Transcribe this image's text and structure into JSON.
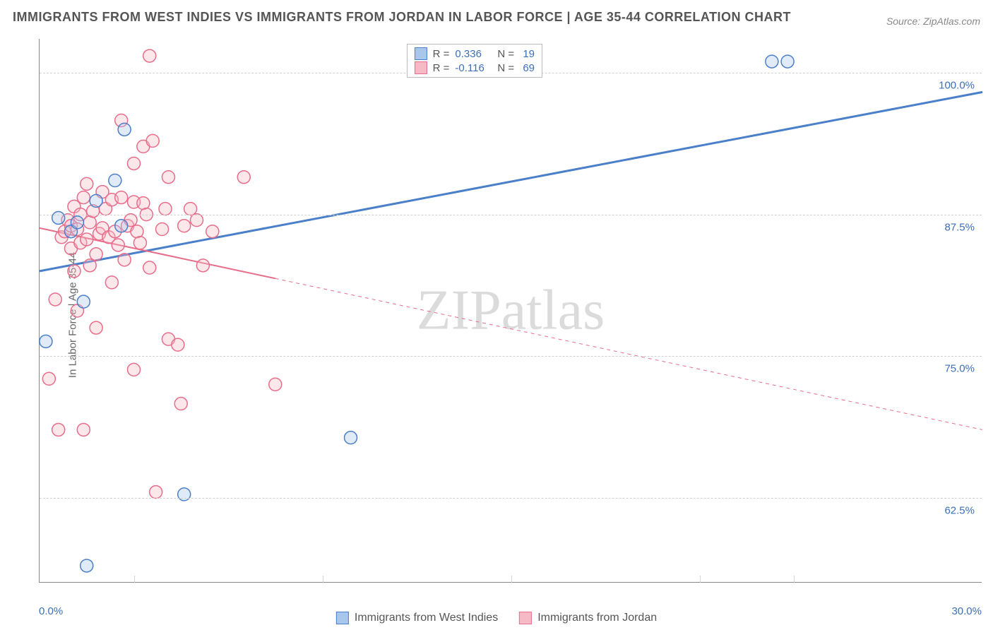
{
  "title": "IMMIGRANTS FROM WEST INDIES VS IMMIGRANTS FROM JORDAN IN LABOR FORCE | AGE 35-44 CORRELATION CHART",
  "source": "Source: ZipAtlas.com",
  "y_axis_label": "In Labor Force | Age 35-44",
  "watermark": "ZIPatlas",
  "chart": {
    "type": "scatter-with-regression",
    "background_color": "#ffffff",
    "grid_color": "#d0d0d0",
    "axis_color": "#888888",
    "label_color": "#3b6fb6",
    "title_color": "#555555",
    "xlim": [
      0.0,
      30.0
    ],
    "ylim": [
      55.0,
      103.0
    ],
    "x_ticks": [
      0.0,
      30.0
    ],
    "x_tick_labels": [
      "0.0%",
      "30.0%"
    ],
    "y_ticks": [
      62.5,
      75.0,
      87.5,
      100.0
    ],
    "y_tick_labels": [
      "62.5%",
      "75.0%",
      "87.5%",
      "100.0%"
    ],
    "x_minor_ticks": [
      3.0,
      9.0,
      15.0,
      21.0,
      24.0
    ],
    "marker_radius": 9,
    "marker_opacity": 0.35,
    "marker_stroke_width": 1.5,
    "series": [
      {
        "name": "Immigrants from West Indies",
        "color_fill": "#a9c7ec",
        "color_stroke": "#4a7fc9",
        "R": "0.336",
        "N": "19",
        "regression": {
          "x1": 0.0,
          "y1": 82.5,
          "x2": 30.0,
          "y2": 98.3,
          "line_width": 3
        },
        "points": [
          [
            0.2,
            76.3
          ],
          [
            0.6,
            87.2
          ],
          [
            1.0,
            86.0
          ],
          [
            1.2,
            86.8
          ],
          [
            1.4,
            79.8
          ],
          [
            1.8,
            88.7
          ],
          [
            2.4,
            90.5
          ],
          [
            2.6,
            86.5
          ],
          [
            2.7,
            95.0
          ],
          [
            4.6,
            62.8
          ],
          [
            9.9,
            67.8
          ],
          [
            23.3,
            101.0
          ],
          [
            23.8,
            101.0
          ],
          [
            1.5,
            56.5
          ]
        ]
      },
      {
        "name": "Immigrants from Jordan",
        "color_fill": "#f6b9c6",
        "color_stroke": "#e76d8a",
        "R": "-0.116",
        "N": "69",
        "regression": {
          "x1": 0.0,
          "y1": 86.3,
          "x2": 30.0,
          "y2": 68.5,
          "line_width": 2,
          "dash_after_x": 7.5
        },
        "points": [
          [
            0.3,
            73.0
          ],
          [
            0.5,
            80.0
          ],
          [
            0.6,
            68.5
          ],
          [
            0.7,
            85.5
          ],
          [
            0.8,
            86.0
          ],
          [
            0.9,
            87.0
          ],
          [
            1.0,
            84.5
          ],
          [
            1.0,
            86.5
          ],
          [
            1.1,
            88.2
          ],
          [
            1.1,
            82.5
          ],
          [
            1.2,
            86.2
          ],
          [
            1.2,
            79.0
          ],
          [
            1.3,
            87.5
          ],
          [
            1.3,
            85.0
          ],
          [
            1.4,
            89.0
          ],
          [
            1.4,
            68.5
          ],
          [
            1.5,
            85.3
          ],
          [
            1.5,
            90.2
          ],
          [
            1.6,
            86.8
          ],
          [
            1.6,
            83.0
          ],
          [
            1.7,
            87.8
          ],
          [
            1.8,
            84.0
          ],
          [
            1.8,
            77.5
          ],
          [
            1.9,
            85.8
          ],
          [
            2.0,
            86.3
          ],
          [
            2.0,
            89.5
          ],
          [
            2.1,
            88.0
          ],
          [
            2.2,
            85.5
          ],
          [
            2.3,
            88.8
          ],
          [
            2.3,
            81.5
          ],
          [
            2.4,
            86.0
          ],
          [
            2.5,
            84.8
          ],
          [
            2.6,
            95.8
          ],
          [
            2.6,
            89.0
          ],
          [
            2.7,
            83.5
          ],
          [
            2.8,
            86.5
          ],
          [
            2.9,
            87.0
          ],
          [
            3.0,
            92.0
          ],
          [
            3.0,
            88.6
          ],
          [
            3.0,
            73.8
          ],
          [
            3.1,
            86.0
          ],
          [
            3.2,
            85.0
          ],
          [
            3.3,
            88.5
          ],
          [
            3.3,
            93.5
          ],
          [
            3.4,
            87.5
          ],
          [
            3.5,
            101.5
          ],
          [
            3.5,
            82.8
          ],
          [
            3.6,
            94.0
          ],
          [
            3.7,
            63.0
          ],
          [
            3.9,
            86.2
          ],
          [
            4.0,
            88.0
          ],
          [
            4.1,
            90.8
          ],
          [
            4.1,
            76.5
          ],
          [
            4.4,
            76.0
          ],
          [
            4.5,
            70.8
          ],
          [
            4.6,
            86.5
          ],
          [
            4.8,
            88.0
          ],
          [
            5.0,
            87.0
          ],
          [
            5.2,
            83.0
          ],
          [
            5.5,
            86.0
          ],
          [
            6.5,
            90.8
          ],
          [
            7.5,
            72.5
          ]
        ]
      }
    ]
  },
  "legend_top": {
    "rows": [
      {
        "series_idx": 0,
        "R_label": "R =",
        "N_label": "N ="
      },
      {
        "series_idx": 1,
        "R_label": "R =",
        "N_label": "N ="
      }
    ]
  },
  "legend_bottom": [
    {
      "series_idx": 0
    },
    {
      "series_idx": 1
    }
  ]
}
